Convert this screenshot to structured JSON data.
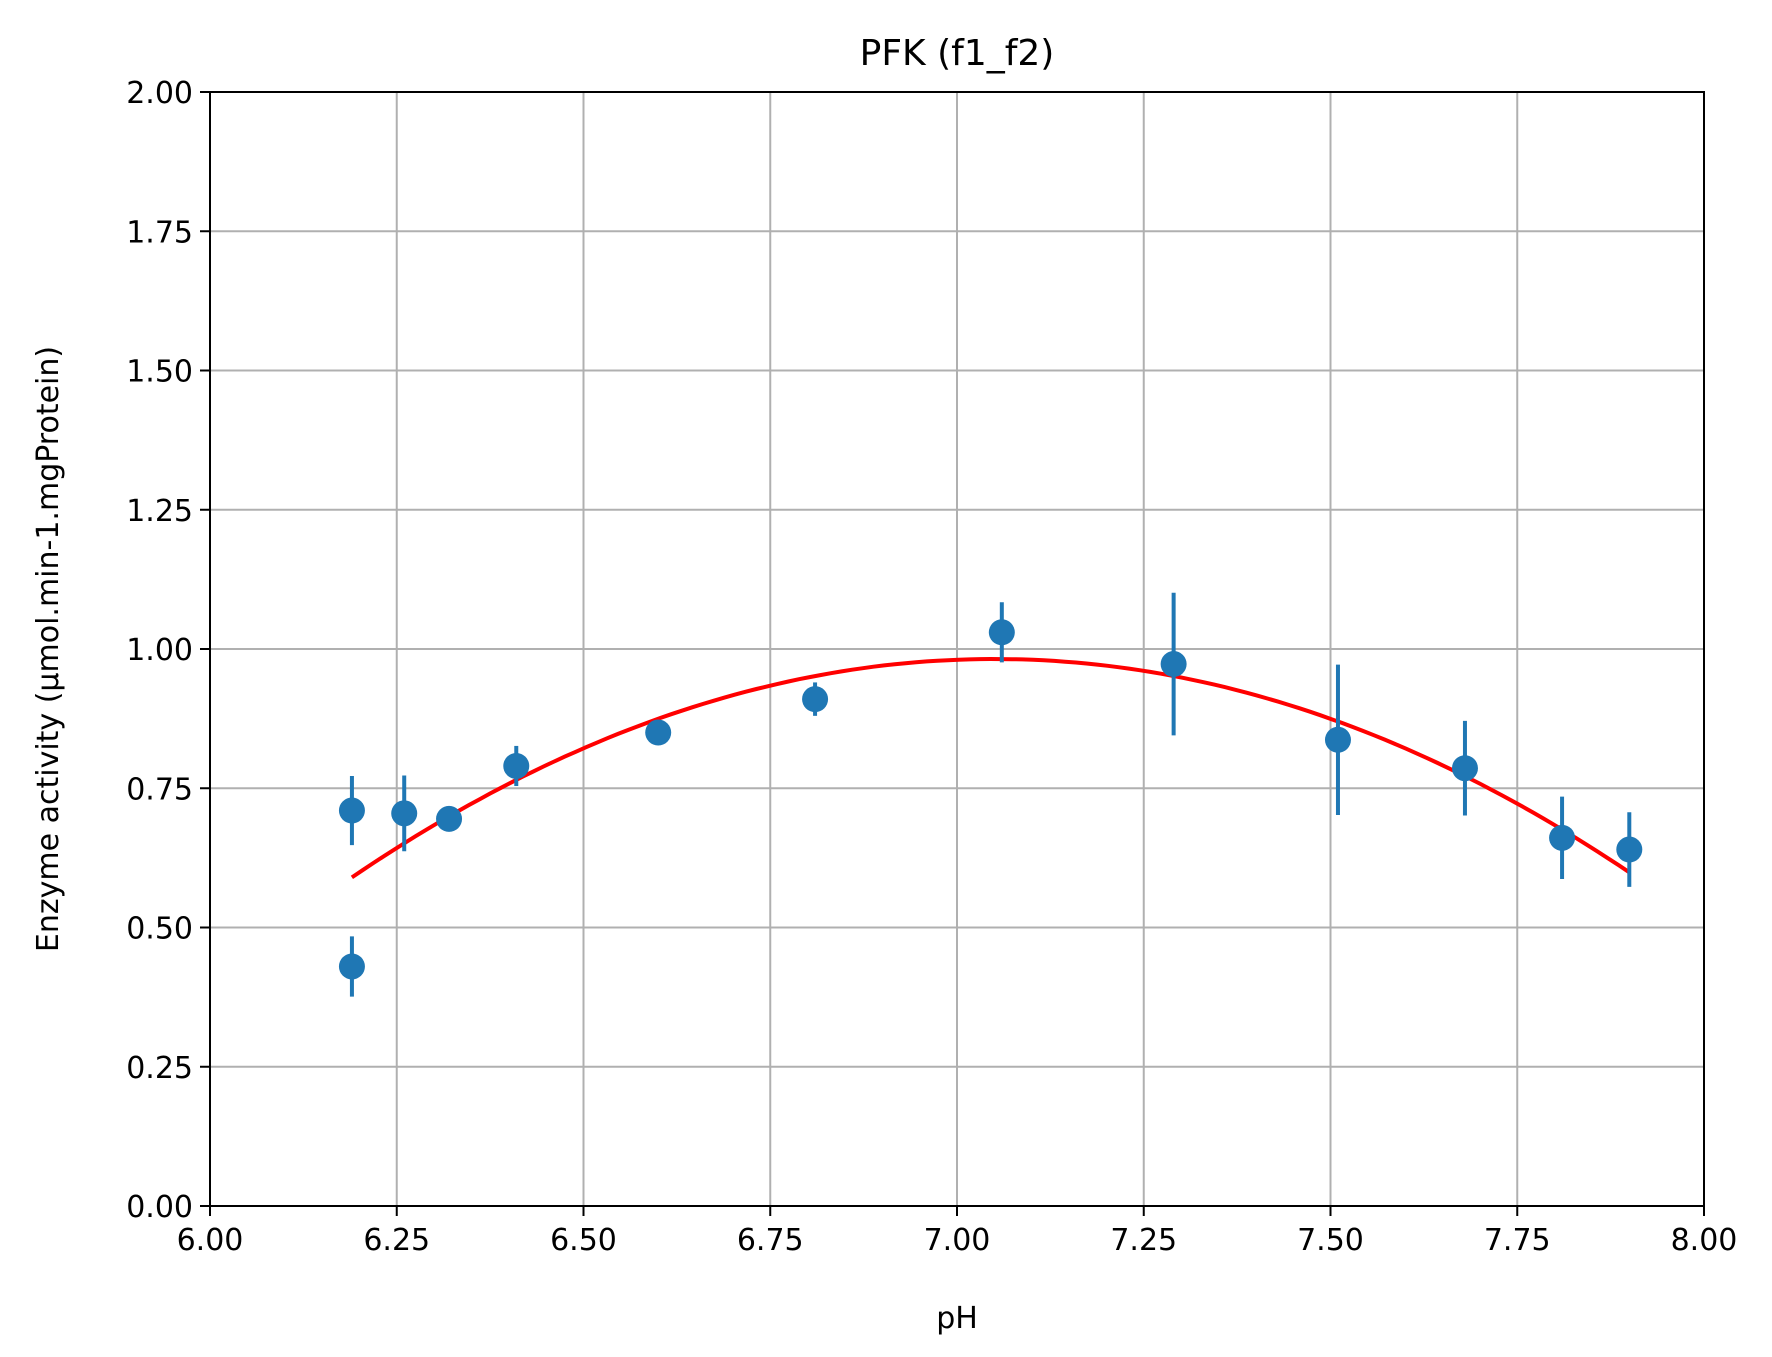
{
  "chart_data": {
    "type": "scatter",
    "title": "PFK (f1_f2)",
    "xlabel": "pH",
    "ylabel": "Enzyme activity (µmol.min-1.mgProtein)",
    "xlim": [
      6.0,
      8.0
    ],
    "ylim": [
      0.0,
      2.0
    ],
    "xticks": [
      "6.00",
      "6.25",
      "6.50",
      "6.75",
      "7.00",
      "7.25",
      "7.50",
      "7.75",
      "8.00"
    ],
    "yticks": [
      "0.00",
      "0.25",
      "0.50",
      "0.75",
      "1.00",
      "1.25",
      "1.50",
      "1.75",
      "2.00"
    ],
    "grid": true,
    "legend": "none",
    "series": [
      {
        "type": "scatter-errorbar",
        "color": "#1f77b4",
        "points": [
          {
            "x": 6.19,
            "y": 0.71,
            "err": 0.062
          },
          {
            "x": 6.19,
            "y": 0.43,
            "err": 0.054
          },
          {
            "x": 6.26,
            "y": 0.705,
            "err": 0.068
          },
          {
            "x": 6.32,
            "y": 0.695,
            "err": 0.012
          },
          {
            "x": 6.41,
            "y": 0.79,
            "err": 0.036
          },
          {
            "x": 6.6,
            "y": 0.85,
            "err": 0.01
          },
          {
            "x": 6.81,
            "y": 0.91,
            "err": 0.03
          },
          {
            "x": 7.06,
            "y": 1.03,
            "err": 0.054
          },
          {
            "x": 7.29,
            "y": 0.973,
            "err": 0.128
          },
          {
            "x": 7.51,
            "y": 0.837,
            "err": 0.135
          },
          {
            "x": 7.68,
            "y": 0.786,
            "err": 0.085
          },
          {
            "x": 7.81,
            "y": 0.661,
            "err": 0.074
          },
          {
            "x": 7.9,
            "y": 0.64,
            "err": 0.067
          }
        ]
      },
      {
        "type": "line",
        "color": "#ff0000",
        "fit": "quadratic",
        "x_range": [
          6.19,
          7.9
        ],
        "vertex": {
          "x": 7.05,
          "y": 0.982
        },
        "curvature": -0.53
      }
    ]
  }
}
